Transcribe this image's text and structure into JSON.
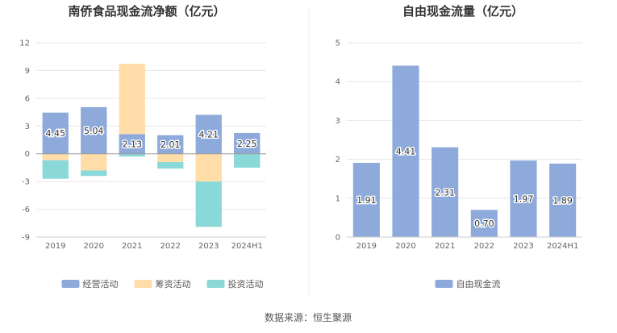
{
  "source": "数据来源：恒生聚源",
  "colors": {
    "operating": "#8eaadb",
    "financing": "#ffdca8",
    "investing": "#8ad8d8",
    "free": "#8eaadb",
    "axis": "#999999",
    "grid": "#e6e6e6"
  },
  "chart_data": [
    {
      "type": "bar",
      "stacked": true,
      "title": "南侨食品现金流净额（亿元）",
      "categories": [
        "2019",
        "2020",
        "2021",
        "2022",
        "2023",
        "2024H1"
      ],
      "ylim": [
        -9,
        12
      ],
      "yticks": [
        -9,
        -6,
        -3,
        0,
        3,
        6,
        9,
        12
      ],
      "grid": true,
      "legend_position": "bottom",
      "series": [
        {
          "name": "经营活动",
          "color_key": "operating",
          "values": [
            4.45,
            5.04,
            2.13,
            2.01,
            4.21,
            2.25
          ],
          "labels": [
            "4.45",
            "5.04",
            "2.13",
            "2.01",
            "4.21",
            "2.25"
          ]
        },
        {
          "name": "筹资活动",
          "color_key": "financing",
          "values": [
            -0.7,
            -1.8,
            7.6,
            -0.9,
            -3.0,
            0.0
          ]
        },
        {
          "name": "投资活动",
          "color_key": "investing",
          "values": [
            -2.0,
            -0.6,
            -0.3,
            -0.7,
            -4.9,
            -1.5
          ]
        }
      ]
    },
    {
      "type": "bar",
      "title": "自由现金流量（亿元）",
      "categories": [
        "2019",
        "2020",
        "2021",
        "2022",
        "2023",
        "2024H1"
      ],
      "ylim": [
        0,
        5
      ],
      "yticks": [
        0,
        1,
        2,
        3,
        4,
        5
      ],
      "grid": true,
      "legend_position": "bottom",
      "series": [
        {
          "name": "自由现金流",
          "color_key": "free",
          "values": [
            1.91,
            4.41,
            2.31,
            0.7,
            1.97,
            1.89
          ],
          "labels": [
            "1.91",
            "4.41",
            "2.31",
            "0.70",
            "1.97",
            "1.89"
          ]
        }
      ]
    }
  ]
}
